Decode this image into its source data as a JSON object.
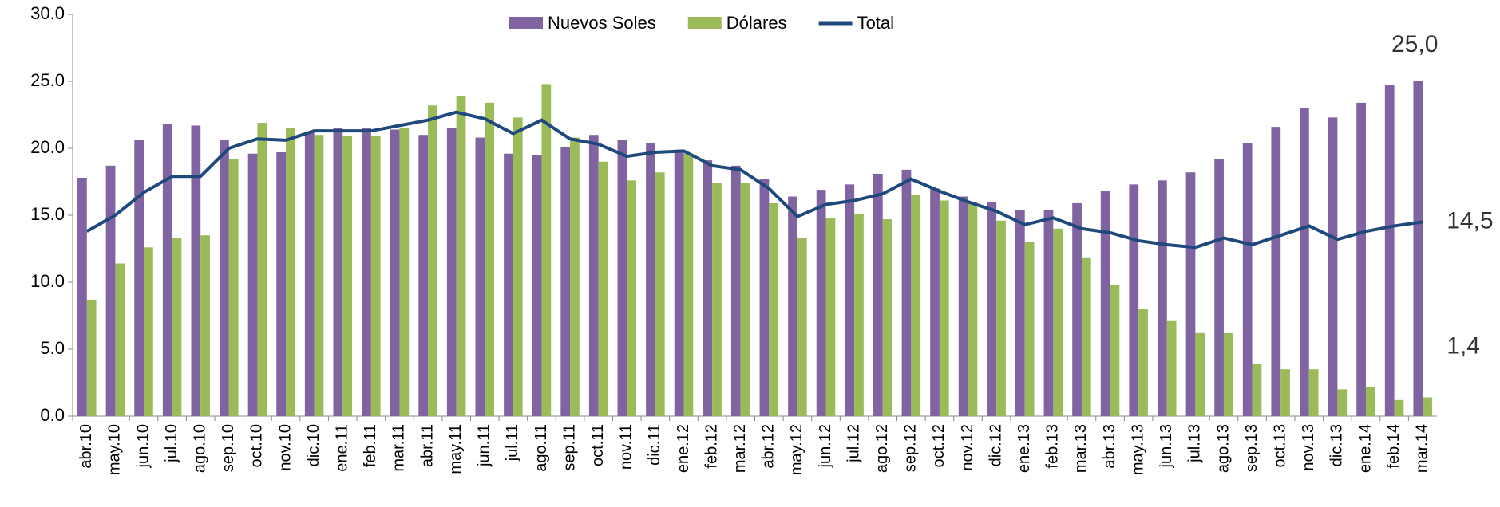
{
  "chart_data": {
    "type": "bar-line",
    "categories": [
      "abr.10",
      "may.10",
      "jun.10",
      "jul.10",
      "ago.10",
      "sep.10",
      "oct.10",
      "nov.10",
      "dic.10",
      "ene.11",
      "feb.11",
      "mar.11",
      "abr.11",
      "may.11",
      "jun.11",
      "jul.11",
      "ago.11",
      "sep.11",
      "oct.11",
      "nov.11",
      "dic.11",
      "ene.12",
      "feb.12",
      "mar.12",
      "abr.12",
      "may.12",
      "jun.12",
      "jul.12",
      "ago.12",
      "sep.12",
      "oct.12",
      "nov.12",
      "dic.12",
      "ene.13",
      "feb.13",
      "mar.13",
      "abr.13",
      "may.13",
      "jun.13",
      "jul.13",
      "ago.13",
      "sep.13",
      "oct.13",
      "nov.13",
      "dic.13",
      "ene.14",
      "feb.14",
      "mar.14"
    ],
    "series": [
      {
        "name": "Nuevos Soles",
        "kind": "bar",
        "color": "#8064a2",
        "values": [
          17.8,
          18.7,
          20.6,
          21.8,
          21.7,
          20.6,
          19.6,
          19.7,
          21.2,
          21.5,
          21.5,
          21.4,
          21.0,
          21.5,
          20.8,
          19.6,
          19.5,
          20.1,
          21.0,
          20.6,
          20.4,
          19.9,
          19.1,
          18.7,
          17.7,
          16.4,
          16.9,
          17.3,
          18.1,
          18.4,
          17.0,
          16.4,
          16.0,
          15.4,
          15.4,
          15.9,
          16.8,
          17.3,
          17.6,
          18.2,
          19.2,
          20.4,
          21.6,
          23.0,
          22.3,
          23.4,
          24.7,
          25.0
        ],
        "value_labels": [
          null,
          null,
          null,
          null,
          null,
          null,
          null,
          null,
          null,
          null,
          null,
          null,
          null,
          null,
          null,
          null,
          null,
          null,
          null,
          null,
          null,
          null,
          null,
          null,
          null,
          null,
          null,
          null,
          null,
          null,
          null,
          null,
          null,
          null,
          null,
          null,
          null,
          null,
          null,
          null,
          null,
          null,
          null,
          null,
          null,
          null,
          null,
          "25,0"
        ]
      },
      {
        "name": "Dólares",
        "kind": "bar",
        "color": "#9bbb59",
        "values": [
          8.7,
          11.4,
          12.6,
          13.3,
          13.5,
          19.2,
          21.9,
          21.5,
          21.0,
          20.9,
          20.9,
          21.5,
          23.2,
          23.9,
          23.4,
          22.3,
          24.8,
          20.8,
          19.0,
          17.6,
          18.2,
          19.6,
          17.4,
          17.4,
          15.9,
          13.3,
          14.8,
          15.1,
          14.7,
          16.5,
          16.1,
          16.0,
          14.6,
          13.0,
          14.0,
          11.8,
          9.8,
          8.0,
          7.1,
          6.2,
          6.2,
          3.9,
          3.5,
          3.5,
          2.0,
          2.2,
          1.2,
          1.4
        ],
        "value_labels": [
          null,
          null,
          null,
          null,
          null,
          null,
          null,
          null,
          null,
          null,
          null,
          null,
          null,
          null,
          null,
          null,
          null,
          null,
          null,
          null,
          null,
          null,
          null,
          null,
          null,
          null,
          null,
          null,
          null,
          null,
          null,
          null,
          null,
          null,
          null,
          null,
          null,
          null,
          null,
          null,
          null,
          null,
          null,
          null,
          null,
          null,
          null,
          "1,4"
        ]
      },
      {
        "name": "Total",
        "kind": "line",
        "color": "#1f497d",
        "values": [
          13.8,
          15.0,
          16.7,
          17.9,
          17.9,
          20.0,
          20.7,
          20.6,
          21.3,
          21.3,
          21.3,
          21.7,
          22.1,
          22.7,
          22.2,
          21.1,
          22.1,
          20.7,
          20.3,
          19.4,
          19.7,
          19.8,
          18.7,
          18.4,
          17.0,
          14.9,
          15.8,
          16.1,
          16.6,
          17.7,
          16.8,
          16.0,
          15.3,
          14.3,
          14.8,
          14.0,
          13.7,
          13.1,
          12.8,
          12.6,
          13.3,
          12.8,
          13.5,
          14.2,
          13.2,
          13.8,
          14.2,
          14.5
        ],
        "value_labels": [
          null,
          null,
          null,
          null,
          null,
          null,
          null,
          null,
          null,
          null,
          null,
          null,
          null,
          null,
          null,
          null,
          null,
          null,
          null,
          null,
          null,
          null,
          null,
          null,
          null,
          null,
          null,
          null,
          null,
          null,
          null,
          null,
          null,
          null,
          null,
          null,
          null,
          null,
          null,
          null,
          null,
          null,
          null,
          null,
          null,
          null,
          null,
          "14,5"
        ]
      }
    ],
    "ylim": [
      0,
      30
    ],
    "yticks": [
      {
        "value": 0,
        "label": "0.0"
      },
      {
        "value": 5,
        "label": "5.0"
      },
      {
        "value": 10,
        "label": "10.0"
      },
      {
        "value": 15,
        "label": "15.0"
      },
      {
        "value": 20,
        "label": "20.0"
      },
      {
        "value": 25,
        "label": "25.0"
      },
      {
        "value": 30,
        "label": "30.0"
      }
    ],
    "legend": "top"
  }
}
